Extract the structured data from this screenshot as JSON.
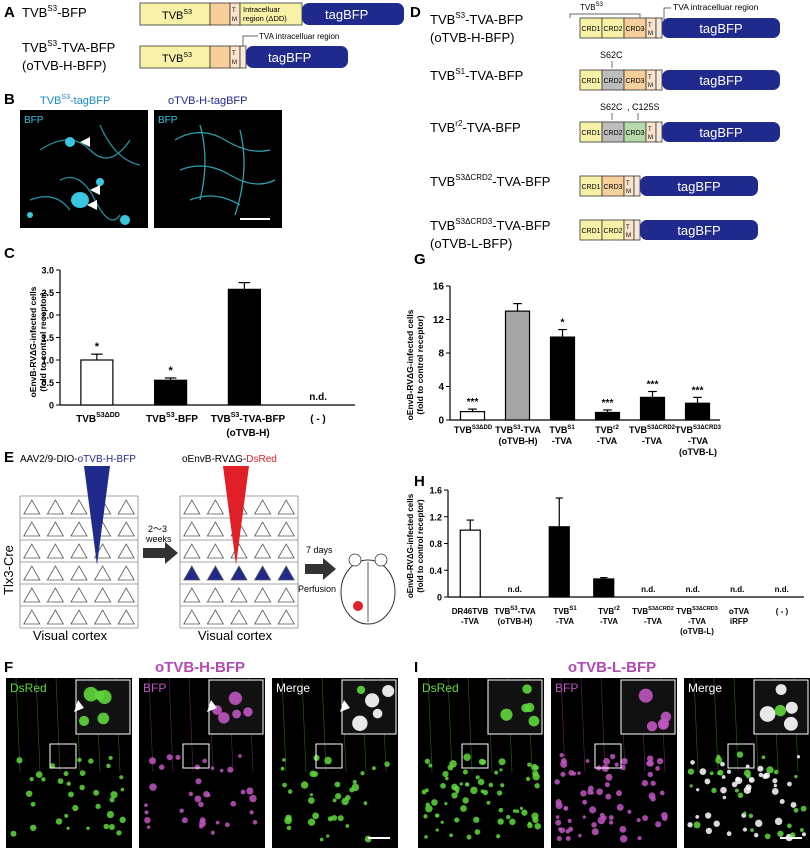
{
  "panel_labels": [
    "A",
    "B",
    "C",
    "D",
    "E",
    "F",
    "G",
    "H",
    "I"
  ],
  "colors": {
    "yellow": "#f7f2a8",
    "orange": "#f6cf9a",
    "tm": "#fce4cc",
    "tag_blue": "#1f2a8c",
    "crd2_gray": "#bdbdbd",
    "crd3_green": "#b5d9a8",
    "cyan": "#39c7e0",
    "green": "#5fd83c",
    "magenta": "#c055c0",
    "red": "#e01f26",
    "title_magenta": "#b04bb0"
  },
  "panel_A": {
    "construct1_name": "TVB",
    "construct1_sup": "S3",
    "construct1_suffix": "-BFP",
    "construct2_name": "TVB",
    "construct2_sup": "S3",
    "construct2_suffix": "-TVA-BFP",
    "construct2_alias": "(oTVB-H-BFP)",
    "box_tvb": "TVB",
    "box_tvb_sup": "S3",
    "tm_t": "T",
    "tm_m": "M",
    "intracellular1": "Intracelluar",
    "intracellular2": "region (ΔDD)",
    "tag": "tagBFP",
    "tva_region": "TVA intracelluar region"
  },
  "panel_B": {
    "left_title": "TVB",
    "left_sup": "S3",
    "left_title_suffix": "-tagBFP",
    "right_title": "oTVB-H-tagBFP",
    "channel": "BFP"
  },
  "panel_C": {
    "ylabel1": "oEnvB-RVΔG-infected cells",
    "ylabel2": "(fold to control receptor)",
    "nd": "n.d.",
    "x_labels": [
      {
        "main": "TVB",
        "sup": "S3ΔDD",
        "suffix": "",
        "line2": ""
      },
      {
        "main": "TVB",
        "sup": "S3",
        "suffix": "-BFP",
        "line2": ""
      },
      {
        "main": "TVB",
        "sup": "S3",
        "suffix": "-TVA-BFP",
        "line2": "(oTVB-H)"
      },
      {
        "main": "( - )",
        "sup": "",
        "suffix": "",
        "line2": ""
      }
    ]
  },
  "panel_D": {
    "virus1_prefix": "AAV2/9-DIO-",
    "virus1_suffix": "oTVB-H-BFP",
    "virus2_prefix": "oEnvB-RVΔG-",
    "virus2_suffix": "DsRed",
    "weeks1": "2〜3",
    "weeks2": "weeks",
    "days1": "7 days",
    "days2": "Perfusion",
    "mouse_line": "Tlx3-Cre",
    "cortex_label": "Visual cortex"
  },
  "panel_E": {
    "title": "oTVB-H-BFP",
    "channels": [
      "DsRed",
      "BFP",
      "Merge"
    ]
  },
  "panel_F": {
    "tvb_label": "TVB",
    "tvb_sup": "S3",
    "tva_region": "TVA intracelluar region",
    "crd1": "CRD1",
    "crd2": "CRD2",
    "crd3": "CRD3",
    "tag": "tagBFP",
    "tm_t": "T",
    "tm_m": "M",
    "mut1": "S62C",
    "mut2": "S62C",
    "mut3": "C125S",
    "constructs": [
      {
        "main": "TVB",
        "sup": "S3",
        "suffix": "-TVA-BFP",
        "alias": "(oTVB-H-BFP)"
      },
      {
        "main": "TVB",
        "sup": "S1",
        "suffix": "-TVA-BFP",
        "alias": ""
      },
      {
        "main": "TVB",
        "sup": "r2",
        "suffix": "-TVA-BFP",
        "alias": ""
      },
      {
        "main": "TVB",
        "sup": "S3ΔCRD2",
        "suffix": "-TVA-BFP",
        "alias": ""
      },
      {
        "main": "TVB",
        "sup": "S3ΔCRD3",
        "suffix": "-TVA-BFP",
        "alias": "(oTVB-L-BFP)"
      }
    ]
  },
  "panel_G": {
    "ylabel1": "oEnvB-RVΔG-infected cells",
    "ylabel2": "(fold to control receptor)",
    "x_labels": [
      {
        "l1": "TVB",
        "sup": "S3ΔDD",
        "l2": "",
        "l3": ""
      },
      {
        "l1": "TVB",
        "sup": "S3",
        "l1b": "-TVA",
        "l2": "(oTVB-H)",
        "l3": ""
      },
      {
        "l1": "TVB",
        "sup": "S1",
        "l2": "-TVA",
        "l3": ""
      },
      {
        "l1": "TVB",
        "sup": "r2",
        "l2": "-TVA",
        "l3": ""
      },
      {
        "l1": "TVB",
        "sup": "S3ΔCRD2",
        "l2": "-TVA",
        "l3": ""
      },
      {
        "l1": "TVB",
        "sup": "S3ΔCRD3",
        "l2": "-TVA",
        "l3": "(oTVB-L)"
      }
    ]
  },
  "panel_H": {
    "ylabel1": "oEnvB-RVΔG-infected cells",
    "ylabel2": "(fold to control receptor)",
    "nd": "n.d.",
    "x_labels": [
      {
        "l1": "DR46TVB",
        "sup": "",
        "l2": "-TVA",
        "l3": ""
      },
      {
        "l1": "TVB",
        "sup": "S3",
        "l1b": "-TVA",
        "l2": "(oTVB-H)",
        "l3": ""
      },
      {
        "l1": "TVB",
        "sup": "S1",
        "l2": "-TVA",
        "l3": ""
      },
      {
        "l1": "TVB",
        "sup": "r2",
        "l2": "-TVA",
        "l3": ""
      },
      {
        "l1": "TVB",
        "sup": "S3ΔCRD2",
        "l2": "-TVA",
        "l3": ""
      },
      {
        "l1": "TVB",
        "sup": "S3ΔCRD3",
        "l2": "-TVA",
        "l3": "(oTVB-L)"
      },
      {
        "l1": "oTVA",
        "sup": "",
        "l2": "iRFP",
        "l3": ""
      },
      {
        "l1": "( - )",
        "sup": "",
        "l2": "",
        "l3": ""
      }
    ]
  },
  "panel_I": {
    "title": "oTVB-L-BFP",
    "channels": [
      "DsRed",
      "BFP",
      "Merge"
    ]
  },
  "chart_data": [
    {
      "type": "bar",
      "panel": "C",
      "categories": [
        "TVB S3ΔDD",
        "TVB S3-BFP",
        "TVB S3-TVA-BFP (oTVB-H)",
        "( - )"
      ],
      "values": [
        1.0,
        0.55,
        2.57,
        null
      ],
      "errors": [
        0.13,
        0.05,
        0.15,
        null
      ],
      "fill": [
        "white",
        "black",
        "black",
        "none"
      ],
      "significance": [
        "*",
        "*",
        "",
        ""
      ],
      "not_detected": [
        false,
        false,
        false,
        true
      ],
      "ylabel": "oEnvB-RVΔG-infected cells (fold to control receptor)",
      "ylim": [
        0,
        3
      ],
      "yticks": [
        0,
        0.5,
        1.0,
        1.5,
        2.0,
        2.5,
        3.0
      ],
      "ytick_labels": [
        "0",
        "0.5",
        "1.0",
        "1.5",
        "2.0",
        "2.5",
        "3.0"
      ]
    },
    {
      "type": "bar",
      "panel": "G",
      "categories": [
        "TVB S3ΔDD",
        "TVB S3-TVA (oTVB-H)",
        "TVB S1-TVA",
        "TVB r2-TVA",
        "TVB S3ΔCRD2-TVA",
        "TVB S3ΔCRD3-TVA (oTVB-L)"
      ],
      "values": [
        1.0,
        13.0,
        9.9,
        0.9,
        2.7,
        2.0
      ],
      "errors": [
        0.3,
        0.9,
        0.9,
        0.3,
        0.7,
        0.7
      ],
      "fill": [
        "white",
        "gray",
        "black",
        "black",
        "black",
        "black"
      ],
      "significance": [
        "***",
        "",
        "*",
        "***",
        "***",
        "***"
      ],
      "ylabel": "oEnvB-RVΔG-infected cells (fold to control receptor)",
      "ylim": [
        0,
        16
      ],
      "yticks": [
        0,
        4,
        8,
        12,
        16
      ],
      "ytick_labels": [
        "0",
        "4",
        "8",
        "12",
        "16"
      ]
    },
    {
      "type": "bar",
      "panel": "H",
      "categories": [
        "DR46TVB-TVA",
        "TVB S3-TVA (oTVB-H)",
        "TVB S1-TVA",
        "TVB r2-TVA",
        "TVB S3ΔCRD2-TVA",
        "TVB S3ΔCRD3-TVA (oTVB-L)",
        "oTVA iRFP",
        "( - )"
      ],
      "values": [
        1.0,
        null,
        1.05,
        0.27,
        null,
        null,
        null,
        null
      ],
      "errors": [
        0.15,
        null,
        0.43,
        0.02,
        null,
        null,
        null,
        null
      ],
      "fill": [
        "white",
        "none",
        "black",
        "black",
        "none",
        "none",
        "none",
        "none"
      ],
      "not_detected": [
        false,
        true,
        false,
        false,
        true,
        true,
        true,
        true
      ],
      "ylabel": "oEnvB-RVΔG-infected cells (fold to control receptor)",
      "ylim": [
        0,
        1.6
      ],
      "yticks": [
        0,
        0.4,
        0.8,
        1.2,
        1.6
      ],
      "ytick_labels": [
        "0",
        "0.4",
        "0.8",
        "1.2",
        "1.6"
      ]
    }
  ]
}
